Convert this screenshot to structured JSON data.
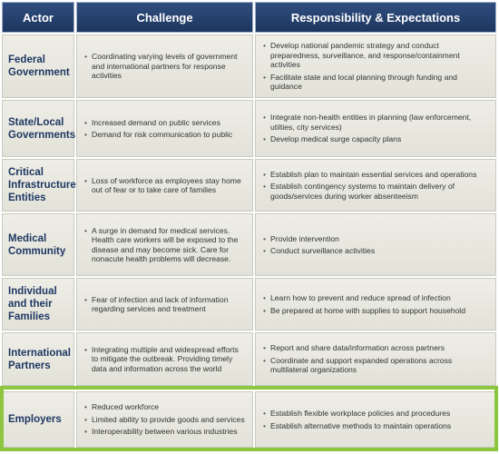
{
  "header": {
    "actor": "Actor",
    "challenge": "Challenge",
    "responsibility": "Responsibility & Expectations"
  },
  "rows": [
    {
      "actor": "Federal Government",
      "challenges": [
        "Coordinating varying levels of government and international partners for response activities"
      ],
      "responsibilities": [
        "Develop national pandemic strategy and conduct preparedness, surveillance, and response/containment activities",
        "Facilitate state and local planning through funding and guidance"
      ]
    },
    {
      "actor": "State/Local Governments",
      "challenges": [
        "Increased demand on public services",
        "Demand for risk communication to public"
      ],
      "responsibilities": [
        "Integrate non-health entities in planning (law enforcement, utilties, city services)",
        "Develop medical surge capacity plans"
      ]
    },
    {
      "actor": "Critical Infrastructure Entities",
      "challenges": [
        "Loss of workforce as employees stay home out of fear or to take care of families"
      ],
      "responsibilities": [
        "Establish plan to maintain essential services and operations",
        "Establish contingency systems to maintain delivery of goods/services during worker absenteeism"
      ]
    },
    {
      "actor": "Medical Community",
      "challenges": [
        "A surge in demand for medical services. Health care workers will be exposed to the disease and may become sick. Care for nonacute health problems will decrease."
      ],
      "responsibilities": [
        "Provide intervention",
        "Conduct surveillance activities"
      ]
    },
    {
      "actor": "Individual and their Families",
      "challenges": [
        "Fear of infection and lack of information regarding services and treatment"
      ],
      "responsibilities": [
        "Learn how to prevent and reduce spread of infection",
        "Be prepared at home with supplies to support household"
      ]
    },
    {
      "actor": "International Partners",
      "challenges": [
        "Integrating multiple and widespread efforts to mitigate the outbreak. Providing timely data and information across the world"
      ],
      "responsibilities": [
        "Report and share data/information across partners",
        "Coordinate and support expanded operations across multilateral organizations"
      ]
    },
    {
      "actor": "Employers",
      "challenges": [
        "Reduced workforce",
        "Limited ability to provide goods and services",
        "Interoperability between various industries"
      ],
      "responsibilities": [
        "Establish flexible workplace policies and procedures",
        "Establish alternative methods to maintain operations"
      ]
    }
  ],
  "colors": {
    "header_bg": "#2f4d7e",
    "cell_bg": "#e9e9e1",
    "actor_text": "#1f3763",
    "highlight_border": "#8cc63f"
  }
}
